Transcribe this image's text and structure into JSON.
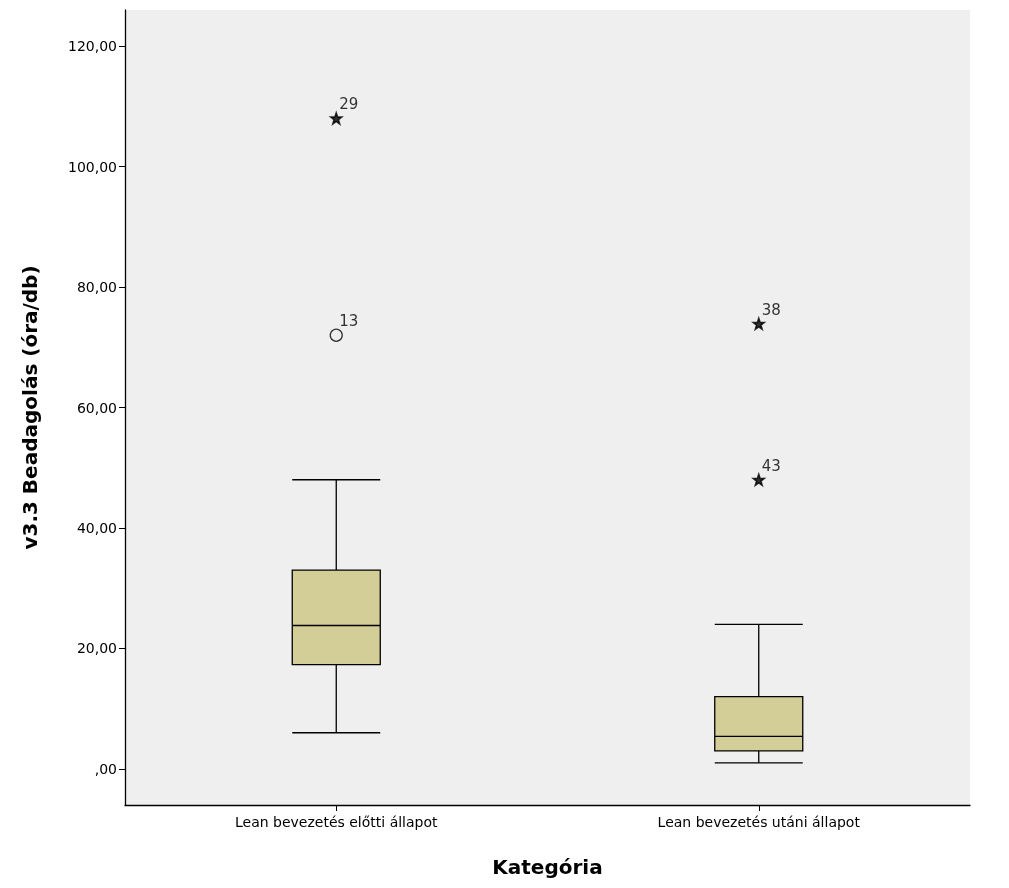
{
  "chart_data": {
    "type": "box",
    "xlabel": "Kategória",
    "ylabel": "v3.3 Beadagolás (óra/db)",
    "categories": [
      "Lean bevezetés előtti állapot",
      "Lean bevezetés utáni állapot"
    ],
    "ylim": [
      -6,
      126
    ],
    "yticks": [
      {
        "value": 0,
        "label": ",00"
      },
      {
        "value": 20,
        "label": "20,00"
      },
      {
        "value": 40,
        "label": "40,00"
      },
      {
        "value": 60,
        "label": "60,00"
      },
      {
        "value": 80,
        "label": "80,00"
      },
      {
        "value": 100,
        "label": "100,00"
      },
      {
        "value": 120,
        "label": "120,00"
      }
    ],
    "grid": false,
    "series": [
      {
        "color": "#d3cd98",
        "boxes": [
          {
            "low": 6,
            "q1": 17.3,
            "median": 23.8,
            "q3": 33,
            "high": 48
          },
          {
            "low": 1,
            "q1": 3,
            "median": 5.4,
            "q3": 12,
            "high": 24
          }
        ]
      },
      {
        "type": "scatter",
        "marker": "circle",
        "color": "#000000",
        "x": [
          "Lean bevezetés előtti állapot"
        ],
        "values": [
          72
        ]
      },
      {
        "type": "scatter",
        "marker": "star",
        "color": "#000000",
        "x": [
          "Lean bevezetés előtti állapot",
          "Lean bevezetés utáni állapot",
          "Lean bevezetés utáni állapot"
        ],
        "values": [
          108,
          73.9,
          48
        ]
      }
    ],
    "annotations": [
      {
        "text": "29",
        "x": "Lean bevezetés előtti állapot",
        "y": 108
      },
      {
        "text": "13",
        "x": "Lean bevezetés előtti állapot",
        "y": 72
      },
      {
        "text": "38",
        "x": "Lean bevezetés utáni állapot",
        "y": 73.9
      },
      {
        "text": "43",
        "x": "Lean bevezetés utáni állapot",
        "y": 48
      }
    ]
  }
}
